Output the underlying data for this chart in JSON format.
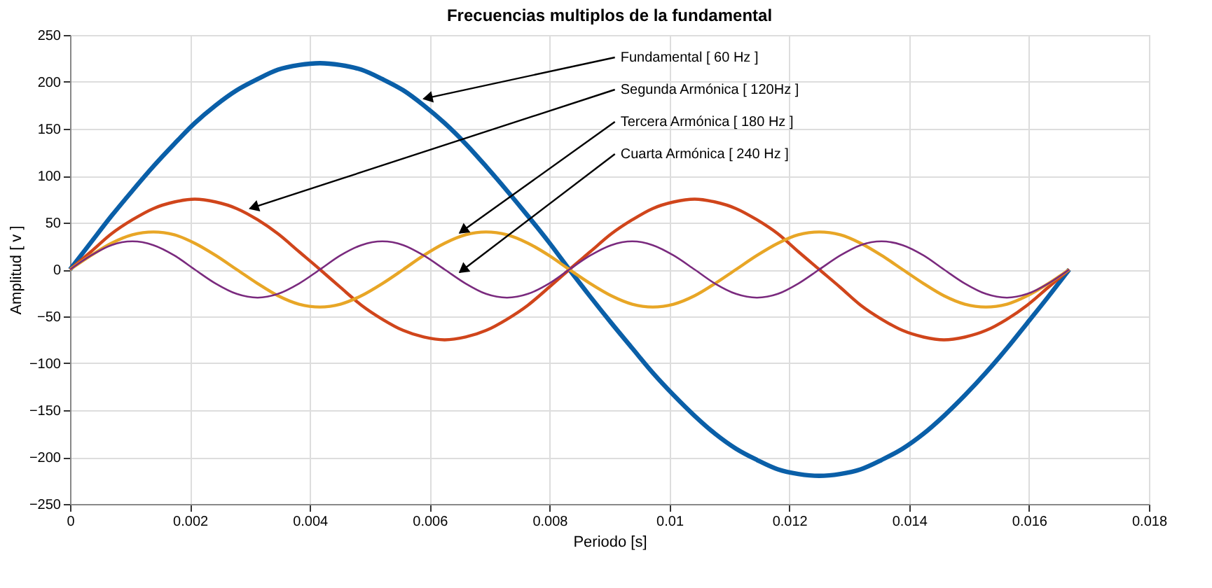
{
  "chart_data": {
    "type": "line",
    "title": "Frecuencias multiplos de la fundamental",
    "xlabel": "Periodo [s]",
    "ylabel": "Amplitud [ v ]",
    "x": [
      0,
      0.00035,
      0.00069,
      0.00104,
      0.00139,
      0.00174,
      0.00208,
      0.00243,
      0.00278,
      0.00313,
      0.00347,
      0.00382,
      0.00417,
      0.00451,
      0.00486,
      0.00521,
      0.00556,
      0.0059,
      0.00625,
      0.0066,
      0.00694,
      0.00729,
      0.00764,
      0.00799,
      0.00833,
      0.00868,
      0.00903,
      0.00938,
      0.00972,
      0.01007,
      0.01042,
      0.01076,
      0.01111,
      0.01146,
      0.01181,
      0.01215,
      0.0125,
      0.01285,
      0.01319,
      0.01354,
      0.01389,
      0.01424,
      0.01458,
      0.01493,
      0.01528,
      0.01563,
      0.01597,
      0.01632,
      0.01667
    ],
    "series": [
      {
        "color": "#0a5fa8",
        "values": [
          0,
          29,
          57,
          84,
          110,
          134,
          156,
          175,
          191,
          203,
          213,
          218,
          220,
          218,
          213,
          203,
          191,
          175,
          156,
          134,
          110,
          84,
          57,
          29,
          0,
          -29,
          -57,
          -84,
          -110,
          -134,
          -156,
          -175,
          -191,
          -203,
          -213,
          -218,
          -220,
          -218,
          -213,
          -203,
          -191,
          -175,
          -156,
          -134,
          -110,
          -84,
          -57,
          -29,
          0
        ]
      },
      {
        "color": "#d0451b",
        "values": [
          0,
          19,
          38,
          53,
          65,
          72,
          75,
          72,
          65,
          53,
          38,
          19,
          0,
          -19,
          -38,
          -53,
          -65,
          -72,
          -75,
          -72,
          -65,
          -53,
          -38,
          -19,
          0,
          19,
          38,
          53,
          65,
          72,
          75,
          72,
          65,
          53,
          38,
          19,
          0,
          -19,
          -38,
          -53,
          -65,
          -72,
          -75,
          -72,
          -65,
          -53,
          -38,
          -19,
          0
        ]
      },
      {
        "color": "#e8a626",
        "values": [
          0,
          15,
          28,
          37,
          40,
          37,
          28,
          15,
          0,
          -15,
          -28,
          -37,
          -40,
          -37,
          -28,
          -15,
          0,
          15,
          28,
          37,
          40,
          37,
          28,
          15,
          0,
          -15,
          -28,
          -37,
          -40,
          -37,
          -28,
          -15,
          0,
          15,
          28,
          37,
          40,
          37,
          28,
          15,
          0,
          -15,
          -28,
          -37,
          -40,
          -37,
          -28,
          -15,
          0
        ]
      },
      {
        "color": "#7a2a7e",
        "values": [
          0,
          15,
          26,
          30,
          26,
          15,
          0,
          -15,
          -26,
          -30,
          -26,
          -15,
          0,
          15,
          26,
          30,
          26,
          15,
          0,
          -15,
          -26,
          -30,
          -26,
          -15,
          0,
          15,
          26,
          30,
          26,
          15,
          0,
          -15,
          -26,
          -30,
          -26,
          -15,
          0,
          15,
          26,
          30,
          26,
          15,
          0,
          -15,
          -26,
          -30,
          -26,
          -15,
          0
        ]
      }
    ],
    "annotations": [
      {
        "text": "Fundamental [ 60 Hz ]",
        "x": 0.0059,
        "y": 182
      },
      {
        "text": "Segunda Armónica [ 120Hz ]",
        "x": 0.003,
        "y": 65
      },
      {
        "text": "Tercera Armónica [ 180 Hz ]",
        "x": 0.0065,
        "y": 39
      },
      {
        "text": "Cuarta Armónica [ 240 Hz ]",
        "x": 0.0065,
        "y": -3
      }
    ],
    "xlim": [
      0,
      0.018
    ],
    "xticks": [
      0,
      0.002,
      0.004,
      0.006,
      0.008,
      0.01,
      0.012,
      0.014,
      0.016,
      0.018
    ],
    "ylim": [
      -250,
      250
    ],
    "yticks": [
      -250,
      -200,
      -150,
      -100,
      -50,
      0,
      50,
      100,
      150,
      200,
      250
    ],
    "grid": true,
    "marker": "none",
    "line_style": "solid"
  }
}
